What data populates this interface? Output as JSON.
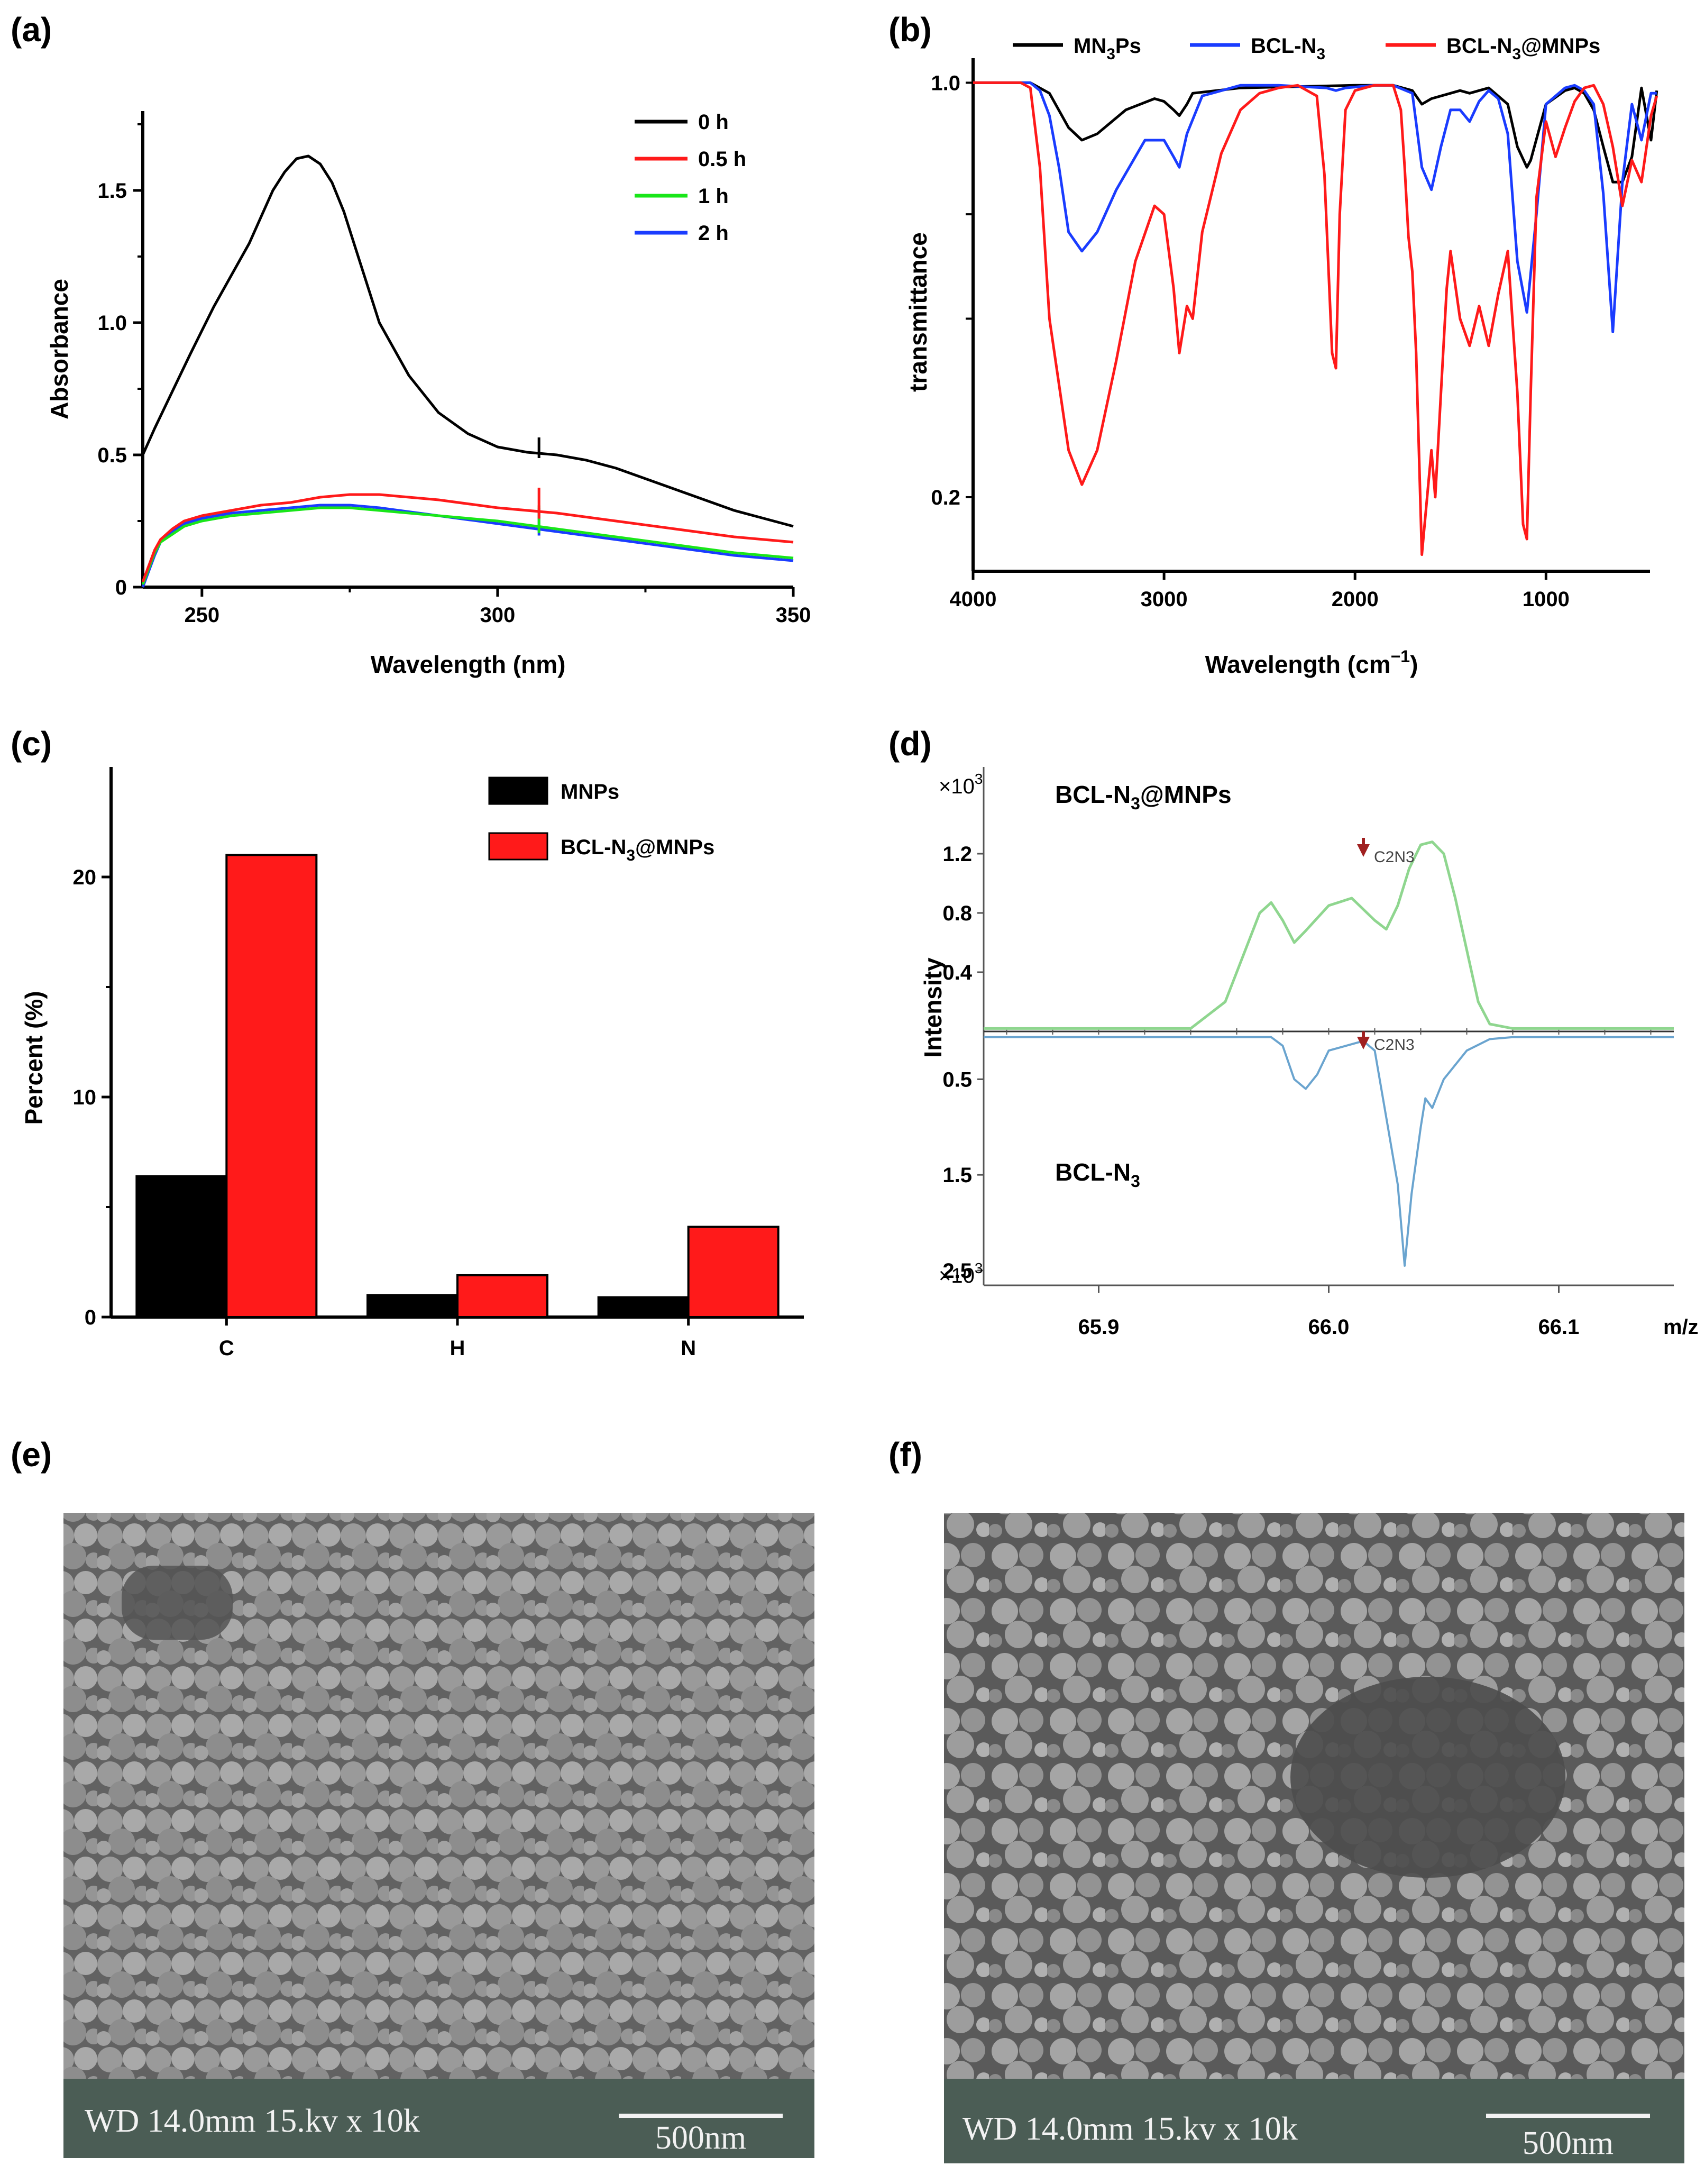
{
  "colors": {
    "black": "#000000",
    "red": "#ff1a1a",
    "green": "#19e619",
    "blue": "#1a3cff",
    "ms_green": "#8fd68f",
    "ms_blue": "#6aa4cf",
    "arrow": "#a02020",
    "sem_bg": "#5f5f5f",
    "sem_bar": "#4b5d55"
  },
  "chart_data": [
    {
      "panel": "(a)",
      "type": "line",
      "xlabel": "Wavelength (nm)",
      "ylabel": "Absorbance",
      "xlim": [
        240,
        350
      ],
      "ylim": [
        0,
        1.8
      ],
      "xticks": [
        "250",
        "300",
        "350"
      ],
      "yticks": [
        "0",
        "0.5",
        "1.0",
        "1.5"
      ],
      "series": [
        {
          "name": "0 h",
          "color": "#000000",
          "spike": 0.06,
          "x": [
            240,
            242,
            245,
            248,
            250,
            252,
            255,
            258,
            260,
            262,
            264,
            266,
            268,
            270,
            272,
            274,
            276,
            278,
            280,
            285,
            290,
            295,
            300,
            305,
            310,
            315,
            320,
            325,
            330,
            335,
            340,
            345,
            350
          ],
          "y": [
            0.5,
            0.6,
            0.74,
            0.88,
            0.97,
            1.06,
            1.18,
            1.3,
            1.4,
            1.5,
            1.57,
            1.62,
            1.63,
            1.6,
            1.53,
            1.42,
            1.28,
            1.14,
            1.0,
            0.8,
            0.66,
            0.58,
            0.53,
            0.51,
            0.5,
            0.48,
            0.45,
            0.41,
            0.37,
            0.33,
            0.29,
            0.26,
            0.23
          ]
        },
        {
          "name": "0.5 h",
          "color": "#ff1a1a",
          "spike": 0.09,
          "x": [
            240,
            241,
            242,
            243,
            245,
            247,
            250,
            255,
            260,
            265,
            270,
            275,
            280,
            290,
            300,
            310,
            320,
            330,
            340,
            350
          ],
          "y": [
            0.02,
            0.08,
            0.14,
            0.18,
            0.22,
            0.25,
            0.27,
            0.29,
            0.31,
            0.32,
            0.34,
            0.35,
            0.35,
            0.33,
            0.3,
            0.28,
            0.25,
            0.22,
            0.19,
            0.17
          ]
        },
        {
          "name": "1 h",
          "color": "#19e619",
          "spike": 0.08,
          "x": [
            240,
            241,
            242,
            243,
            245,
            247,
            250,
            255,
            260,
            265,
            270,
            275,
            280,
            290,
            300,
            310,
            320,
            330,
            340,
            350
          ],
          "y": [
            0.01,
            0.07,
            0.13,
            0.17,
            0.2,
            0.23,
            0.25,
            0.27,
            0.28,
            0.29,
            0.3,
            0.3,
            0.29,
            0.27,
            0.25,
            0.22,
            0.19,
            0.16,
            0.13,
            0.11
          ]
        },
        {
          "name": "2 h",
          "color": "#1a3cff",
          "spike": 0.08,
          "x": [
            240,
            241,
            242,
            243,
            245,
            247,
            250,
            255,
            260,
            265,
            270,
            275,
            280,
            290,
            300,
            310,
            320,
            330,
            340,
            350
          ],
          "y": [
            0.0,
            0.06,
            0.12,
            0.17,
            0.21,
            0.24,
            0.26,
            0.28,
            0.29,
            0.3,
            0.31,
            0.31,
            0.3,
            0.27,
            0.24,
            0.21,
            0.18,
            0.15,
            0.12,
            0.1
          ]
        }
      ]
    },
    {
      "panel": "(b)",
      "type": "line",
      "xlabel_main": "Wavelength (cm",
      "xlabel_sup": "−1",
      "xlabel_end": ")",
      "ylabel": "transmittance",
      "xlim": [
        4000,
        400
      ],
      "ylim": [
        0.15,
        1.1
      ],
      "xticks": [
        "4000",
        "3000",
        "2000",
        "1000"
      ],
      "yticks": [
        "1.0",
        "0.2"
      ],
      "series": [
        {
          "name": "MNPs",
          "color": "#000000",
          "x": [
            4000,
            3700,
            3600,
            3500,
            3430,
            3350,
            3200,
            3050,
            3000,
            2950,
            2920,
            2880,
            2850,
            2600,
            2000,
            1800,
            1700,
            1650,
            1600,
            1500,
            1450,
            1400,
            1350,
            1300,
            1200,
            1150,
            1100,
            1080,
            1000,
            900,
            850,
            800,
            750,
            700,
            650,
            600,
            550,
            500,
            450,
            420
          ],
          "y": [
            1.0,
            1.0,
            0.96,
            0.84,
            0.8,
            0.82,
            0.9,
            0.94,
            0.93,
            0.9,
            0.88,
            0.92,
            0.96,
            0.98,
            0.99,
            0.99,
            0.97,
            0.92,
            0.94,
            0.96,
            0.97,
            0.96,
            0.97,
            0.98,
            0.92,
            0.78,
            0.72,
            0.74,
            0.92,
            0.97,
            0.98,
            0.96,
            0.9,
            0.78,
            0.68,
            0.68,
            0.75,
            0.98,
            0.8,
            0.97
          ]
        },
        {
          "name": "BCL-N",
          "color": "#1a3cff",
          "x": [
            4000,
            3700,
            3650,
            3600,
            3550,
            3500,
            3430,
            3350,
            3250,
            3100,
            3000,
            2950,
            2920,
            2880,
            2800,
            2600,
            2400,
            2150,
            2100,
            2050,
            1900,
            1800,
            1700,
            1650,
            1600,
            1550,
            1500,
            1450,
            1400,
            1350,
            1300,
            1250,
            1200,
            1150,
            1100,
            1050,
            1000,
            900,
            850,
            800,
            750,
            700,
            650,
            600,
            550,
            500,
            450,
            420
          ],
          "y": [
            1.0,
            1.0,
            0.97,
            0.88,
            0.72,
            0.56,
            0.52,
            0.56,
            0.66,
            0.8,
            0.8,
            0.75,
            0.72,
            0.82,
            0.95,
            0.99,
            0.99,
            0.98,
            0.97,
            0.98,
            0.99,
            0.99,
            0.96,
            0.72,
            0.66,
            0.78,
            0.9,
            0.9,
            0.86,
            0.93,
            0.97,
            0.94,
            0.82,
            0.5,
            0.41,
            0.6,
            0.92,
            0.98,
            0.99,
            0.97,
            0.92,
            0.65,
            0.38,
            0.68,
            0.92,
            0.8,
            0.96,
            0.96
          ]
        },
        {
          "name": "BCL-N@MNPs",
          "color": "#ff1a1a",
          "x": [
            4000,
            3750,
            3700,
            3650,
            3600,
            3500,
            3430,
            3350,
            3250,
            3150,
            3050,
            3000,
            2950,
            2920,
            2880,
            2850,
            2800,
            2700,
            2600,
            2500,
            2400,
            2300,
            2200,
            2160,
            2120,
            2100,
            2080,
            2050,
            2000,
            1950,
            1900,
            1800,
            1760,
            1740,
            1720,
            1700,
            1680,
            1650,
            1600,
            1580,
            1550,
            1520,
            1500,
            1450,
            1400,
            1350,
            1300,
            1250,
            1200,
            1150,
            1120,
            1100,
            1080,
            1050,
            1000,
            950,
            900,
            850,
            800,
            750,
            700,
            650,
            600,
            550,
            500,
            450,
            420
          ],
          "y": [
            1.0,
            1.0,
            0.98,
            0.72,
            0.4,
            0.24,
            0.21,
            0.24,
            0.34,
            0.5,
            0.62,
            0.6,
            0.45,
            0.35,
            0.42,
            0.4,
            0.56,
            0.76,
            0.9,
            0.96,
            0.98,
            0.99,
            0.95,
            0.7,
            0.35,
            0.33,
            0.6,
            0.9,
            0.97,
            0.98,
            0.99,
            0.99,
            0.9,
            0.72,
            0.55,
            0.48,
            0.35,
            0.16,
            0.24,
            0.2,
            0.3,
            0.45,
            0.52,
            0.4,
            0.36,
            0.42,
            0.36,
            0.44,
            0.52,
            0.3,
            0.18,
            0.17,
            0.3,
            0.64,
            0.86,
            0.75,
            0.84,
            0.93,
            0.98,
            0.99,
            0.92,
            0.78,
            0.62,
            0.74,
            0.68,
            0.88,
            0.95
          ]
        }
      ]
    },
    {
      "panel": "(c)",
      "type": "bar",
      "ylabel": "Percent (%)",
      "ylim": [
        0,
        25
      ],
      "categories": [
        "C",
        "H",
        "N"
      ],
      "yticks": [
        "0",
        "10",
        "20"
      ],
      "series": [
        {
          "name": "MNPs",
          "color": "#000000",
          "values": [
            6.4,
            1.0,
            0.9
          ]
        },
        {
          "name": "BCL-N@MNPs",
          "color": "#ff1a1a",
          "values": [
            21.0,
            1.9,
            4.1
          ]
        }
      ]
    },
    {
      "panel": "(d)",
      "type": "line",
      "xlabel": "m/z",
      "ylabel": "Intensity",
      "xlim": [
        65.85,
        66.15
      ],
      "xticks": [
        "65.9",
        "66.0",
        "66.1"
      ],
      "upper": {
        "label": "BCL-N",
        "label_end": "@MNPs",
        "ylim": [
          0,
          1.5
        ],
        "yticks": [
          "0.4",
          "0.8",
          "1.2"
        ],
        "x": [
          65.85,
          65.94,
          65.955,
          65.965,
          65.97,
          65.975,
          65.98,
          65.985,
          65.99,
          66.0,
          66.01,
          66.02,
          66.025,
          66.03,
          66.035,
          66.04,
          66.045,
          66.05,
          66.055,
          66.06,
          66.065,
          66.07,
          66.08,
          66.15
        ],
        "y": [
          0.02,
          0.02,
          0.2,
          0.6,
          0.8,
          0.87,
          0.75,
          0.6,
          0.68,
          0.85,
          0.9,
          0.75,
          0.69,
          0.85,
          1.1,
          1.26,
          1.28,
          1.2,
          0.9,
          0.55,
          0.2,
          0.05,
          0.02,
          0.02
        ]
      },
      "lower": {
        "label": "BCL-N",
        "ylim": [
          0,
          2.6
        ],
        "yticks": [
          "0.5",
          "1.5",
          "2.5"
        ],
        "x": [
          65.85,
          65.975,
          65.98,
          65.985,
          65.99,
          65.995,
          66.0,
          66.015,
          66.02,
          66.025,
          66.03,
          66.033,
          66.036,
          66.04,
          66.042,
          66.045,
          66.05,
          66.06,
          66.07,
          66.08,
          66.15
        ],
        "y": [
          0.06,
          0.06,
          0.15,
          0.5,
          0.6,
          0.45,
          0.2,
          0.1,
          0.2,
          0.9,
          1.6,
          2.45,
          1.7,
          1.0,
          0.7,
          0.8,
          0.5,
          0.2,
          0.08,
          0.06,
          0.06
        ]
      },
      "annotation": "C2N3",
      "multiplier_base": "×10",
      "multiplier_exp": "3"
    }
  ],
  "panel_labels": {
    "a": "(a)",
    "b": "(b)",
    "c": "(c)",
    "d": "(d)",
    "e": "(e)",
    "f": "(f)"
  },
  "subscript_3": "3",
  "sem": {
    "e": {
      "caption": "WD  14.0mm 15.kv x 10k",
      "scale": "500nm"
    },
    "f": {
      "caption": "WD  14.0mm 15.kv x 10k",
      "scale": "500nm"
    }
  }
}
